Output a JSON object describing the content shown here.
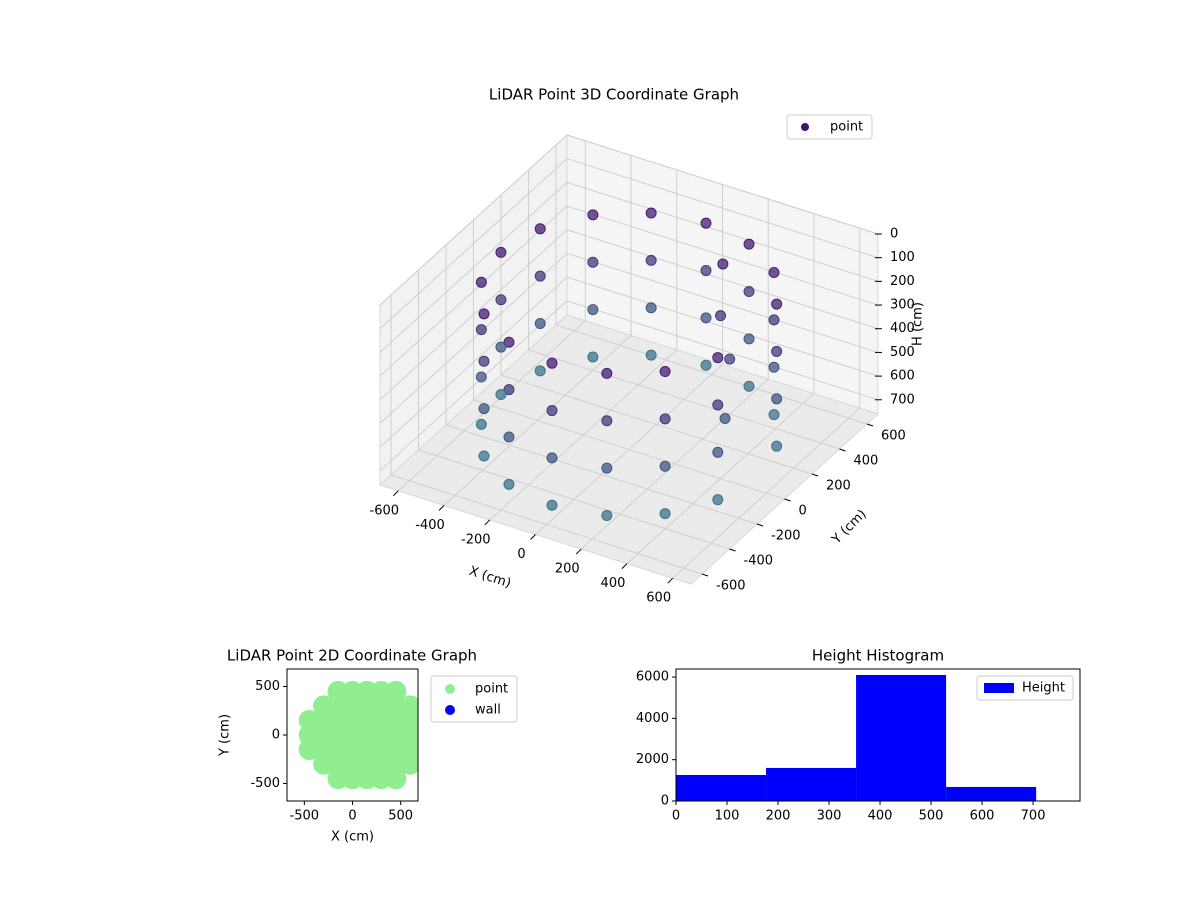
{
  "chart_data": [
    {
      "type": "scatter3d",
      "title": "LiDAR Point 3D Coordinate Graph",
      "xlabel": "X (cm)",
      "ylabel": "Y (cm)",
      "zlabel": "H (cm)",
      "xlim": [
        -680,
        680
      ],
      "ylim": [
        -680,
        680
      ],
      "zlim": [
        0,
        760
      ],
      "z_inverted": true,
      "xticks": [
        -600,
        -400,
        -200,
        0,
        200,
        400,
        600
      ],
      "yticks": [
        -600,
        -400,
        -200,
        0,
        200,
        400,
        600
      ],
      "zticks": [
        0,
        100,
        200,
        300,
        400,
        500,
        600,
        700
      ],
      "grid": true,
      "legend": "upper right",
      "series": [
        {
          "name": "point",
          "color": "#46106f",
          "color_range": [
            "#46106f",
            "#3b7c8c"
          ],
          "x": [
            517,
            396,
            214,
            0,
            -214,
            -396,
            -517,
            -560,
            -517,
            -396,
            -214,
            0,
            214,
            396,
            517,
            517,
            396,
            214,
            0,
            -214,
            -396,
            -517,
            -560,
            -517,
            -396,
            -214,
            0,
            214,
            396,
            517,
            517,
            396,
            214,
            0,
            -214,
            -396,
            -517,
            -560,
            -517,
            -396,
            -214,
            0,
            214,
            396,
            517,
            517,
            396,
            214,
            0,
            -214,
            -396,
            -517,
            -560,
            -517,
            -396,
            -214,
            0,
            214,
            396,
            517,
            200,
            250,
            350,
            420
          ],
          "y": [
            214,
            396,
            517,
            560,
            517,
            396,
            214,
            0,
            -214,
            -396,
            -517,
            -560,
            -517,
            -396,
            -214,
            214,
            396,
            517,
            560,
            517,
            396,
            214,
            0,
            -214,
            -396,
            -517,
            -560,
            -517,
            -396,
            -214,
            214,
            396,
            517,
            560,
            517,
            396,
            214,
            0,
            -214,
            -396,
            -517,
            -560,
            -517,
            -396,
            -214,
            214,
            396,
            517,
            560,
            517,
            396,
            214,
            0,
            -214,
            -396,
            -517,
            -560,
            -517,
            -396,
            -214,
            350,
            250,
            150,
            0
          ],
          "z": [
            100,
            100,
            100,
            100,
            100,
            100,
            100,
            100,
            100,
            100,
            100,
            100,
            100,
            100,
            100,
            300,
            300,
            300,
            300,
            300,
            300,
            300,
            300,
            300,
            300,
            300,
            300,
            300,
            300,
            300,
            500,
            500,
            500,
            500,
            500,
            500,
            500,
            500,
            500,
            500,
            500,
            500,
            500,
            500,
            500,
            700,
            700,
            700,
            700,
            700,
            700,
            700,
            700,
            700,
            700,
            700,
            700,
            700,
            700,
            700,
            100,
            250,
            350,
            500
          ]
        }
      ]
    },
    {
      "type": "scatter",
      "title": "LiDAR Point 2D Coordinate Graph",
      "xlabel": "X (cm)",
      "ylabel": "Y (cm)",
      "xlim": [
        -680,
        680
      ],
      "ylim": [
        -680,
        680
      ],
      "xticks": [
        -500,
        0,
        500
      ],
      "yticks": [
        -500,
        0,
        500
      ],
      "legend": "outside upper right",
      "series": [
        {
          "name": "point",
          "color": "#90ee90",
          "x": [
            -150,
            0,
            150,
            300,
            450,
            -300,
            -150,
            0,
            150,
            300,
            450,
            600,
            -450,
            -300,
            -150,
            0,
            150,
            300,
            450,
            600,
            -450,
            -300,
            -150,
            0,
            150,
            300,
            450,
            600,
            -450,
            -300,
            -150,
            0,
            150,
            300,
            450,
            600,
            -300,
            -150,
            0,
            150,
            300,
            450,
            600,
            -150,
            0,
            150,
            300,
            450
          ],
          "y": [
            -450,
            -450,
            -450,
            -450,
            -450,
            -300,
            -300,
            -300,
            -300,
            -300,
            -300,
            -300,
            -150,
            -150,
            -150,
            -150,
            -150,
            -150,
            -150,
            -150,
            0,
            0,
            0,
            0,
            0,
            0,
            0,
            0,
            150,
            150,
            150,
            150,
            150,
            150,
            150,
            150,
            300,
            300,
            300,
            300,
            300,
            300,
            300,
            450,
            450,
            450,
            450,
            450
          ]
        },
        {
          "name": "wall",
          "color": "#0000ff",
          "x": [],
          "y": []
        }
      ]
    },
    {
      "type": "histogram",
      "title": "Height Histogram",
      "name": "Height",
      "color": "#0000ff",
      "bins": [
        0,
        176.5,
        353,
        529.5,
        706
      ],
      "values": [
        1260,
        1600,
        6100,
        680
      ],
      "xlim": [
        0,
        792
      ],
      "ylim": [
        0,
        6390
      ],
      "xticks": [
        0,
        100,
        200,
        300,
        400,
        500,
        600,
        700
      ],
      "yticks": [
        0,
        2000,
        4000,
        6000
      ],
      "legend": "upper right"
    }
  ]
}
